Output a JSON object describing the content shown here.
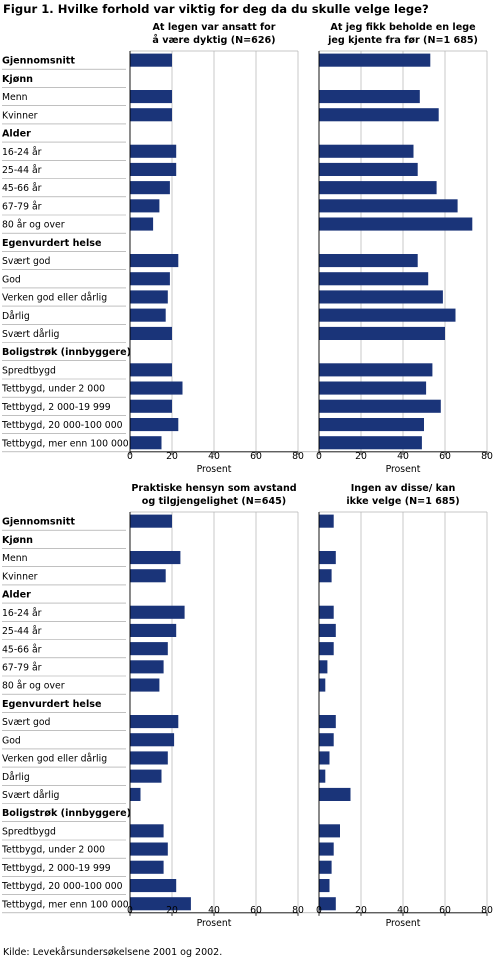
{
  "figure_title": "Figur 1. Hvilke forhold var viktig for deg da du skulle velge lege?",
  "source": "Kilde: Levekårsundersøkelsene 2001 og 2002.",
  "colors": {
    "bar": "#1a3479",
    "grid": "#b4b4b4",
    "separator": "#777777",
    "text": "#000000"
  },
  "rows": [
    {
      "label": "Gjennomsnitt",
      "header": true,
      "has_value": true
    },
    {
      "label": "Kjønn",
      "header": true,
      "has_value": false
    },
    {
      "label": "Menn",
      "header": false,
      "has_value": true
    },
    {
      "label": "Kvinner",
      "header": false,
      "has_value": true
    },
    {
      "label": "Alder",
      "header": true,
      "has_value": false
    },
    {
      "label": "16-24 år",
      "header": false,
      "has_value": true
    },
    {
      "label": "25-44 år",
      "header": false,
      "has_value": true
    },
    {
      "label": "45-66 år",
      "header": false,
      "has_value": true
    },
    {
      "label": "67-79 år",
      "header": false,
      "has_value": true
    },
    {
      "label": "80 år og over",
      "header": false,
      "has_value": true
    },
    {
      "label": "Egenvurdert helse",
      "header": true,
      "has_value": false
    },
    {
      "label": "Svært god",
      "header": false,
      "has_value": true
    },
    {
      "label": "God",
      "header": false,
      "has_value": true
    },
    {
      "label": "Verken god eller dårlig",
      "header": false,
      "has_value": true
    },
    {
      "label": "Dårlig",
      "header": false,
      "has_value": true
    },
    {
      "label": "Svært dårlig",
      "header": false,
      "has_value": true
    },
    {
      "label": "Boligstrøk (innbyggere)",
      "header": true,
      "has_value": false
    },
    {
      "label": "Spredtbygd",
      "header": false,
      "has_value": true
    },
    {
      "label": "Tettbygd, under 2 000",
      "header": false,
      "has_value": true
    },
    {
      "label": "Tettbygd, 2 000-19 999",
      "header": false,
      "has_value": true
    },
    {
      "label": "Tettbygd, 20 000-100 000",
      "header": false,
      "has_value": true
    },
    {
      "label": "Tettbygd, mer enn 100 000",
      "header": false,
      "has_value": true
    }
  ],
  "chart_data": [
    {
      "type": "bar",
      "orientation": "horizontal",
      "title": "At legen var ansatt for å være dyktig (N=626)",
      "xlabel": "Prosent",
      "xlim": [
        0,
        80
      ],
      "xticks": [
        0,
        20,
        40,
        60,
        80
      ],
      "grid": true,
      "categories": [
        "Gjennomsnitt",
        "Menn",
        "Kvinner",
        "16-24 år",
        "25-44 år",
        "45-66 år",
        "67-79 år",
        "80 år og over",
        "Svært god",
        "God",
        "Verken god eller dårlig",
        "Dårlig",
        "Svært dårlig",
        "Spredtbygd",
        "Tettbygd, under 2 000",
        "Tettbygd, 2 000-19 999",
        "Tettbygd, 20 000-100 000",
        "Tettbygd, mer enn 100 000"
      ],
      "values": [
        20,
        20,
        20,
        22,
        22,
        19,
        14,
        11,
        23,
        19,
        18,
        17,
        20,
        20,
        25,
        20,
        23,
        15
      ]
    },
    {
      "type": "bar",
      "orientation": "horizontal",
      "title": "At jeg fikk beholde en lege jeg kjente fra før (N=1 685)",
      "xlabel": "Prosent",
      "xlim": [
        0,
        80
      ],
      "xticks": [
        0,
        20,
        40,
        60,
        80
      ],
      "grid": true,
      "categories": [
        "Gjennomsnitt",
        "Menn",
        "Kvinner",
        "16-24 år",
        "25-44 år",
        "45-66 år",
        "67-79 år",
        "80 år og over",
        "Svært god",
        "God",
        "Verken god eller dårlig",
        "Dårlig",
        "Svært dårlig",
        "Spredtbygd",
        "Tettbygd, under 2 000",
        "Tettbygd, 2 000-19 999",
        "Tettbygd, 20 000-100 000",
        "Tettbygd, mer enn 100 000"
      ],
      "values": [
        53,
        48,
        57,
        45,
        47,
        56,
        66,
        73,
        47,
        52,
        59,
        65,
        60,
        54,
        51,
        58,
        50,
        49
      ]
    },
    {
      "type": "bar",
      "orientation": "horizontal",
      "title": "Praktiske hensyn som avstand og tilgjengelighet (N=645)",
      "xlabel": "Prosent",
      "xlim": [
        0,
        80
      ],
      "xticks": [
        0,
        20,
        40,
        60,
        80
      ],
      "grid": true,
      "categories": [
        "Gjennomsnitt",
        "Menn",
        "Kvinner",
        "16-24 år",
        "25-44 år",
        "45-66 år",
        "67-79 år",
        "80 år og over",
        "Svært god",
        "God",
        "Verken god eller dårlig",
        "Dårlig",
        "Svært dårlig",
        "Spredtbygd",
        "Tettbygd, under 2 000",
        "Tettbygd, 2 000-19 999",
        "Tettbygd, 20 000-100 000",
        "Tettbygd, mer enn 100 000"
      ],
      "values": [
        20,
        24,
        17,
        26,
        22,
        18,
        16,
        14,
        23,
        21,
        18,
        15,
        5,
        16,
        18,
        16,
        22,
        29
      ]
    },
    {
      "type": "bar",
      "orientation": "horizontal",
      "title": "Ingen av disse/ kan ikke velge (N=1 685)",
      "xlabel": "Prosent",
      "xlim": [
        0,
        80
      ],
      "xticks": [
        0,
        20,
        40,
        60,
        80
      ],
      "grid": true,
      "categories": [
        "Gjennomsnitt",
        "Menn",
        "Kvinner",
        "16-24 år",
        "25-44 år",
        "45-66 år",
        "67-79 år",
        "80 år og over",
        "Svært god",
        "God",
        "Verken god eller dårlig",
        "Dårlig",
        "Svært dårlig",
        "Spredtbygd",
        "Tettbygd, under 2 000",
        "Tettbygd, 2 000-19 999",
        "Tettbygd, 20 000-100 000",
        "Tettbygd, mer enn 100 000"
      ],
      "values": [
        7,
        8,
        6,
        7,
        8,
        7,
        4,
        3,
        8,
        7,
        5,
        3,
        15,
        10,
        7,
        6,
        5,
        8
      ]
    }
  ]
}
